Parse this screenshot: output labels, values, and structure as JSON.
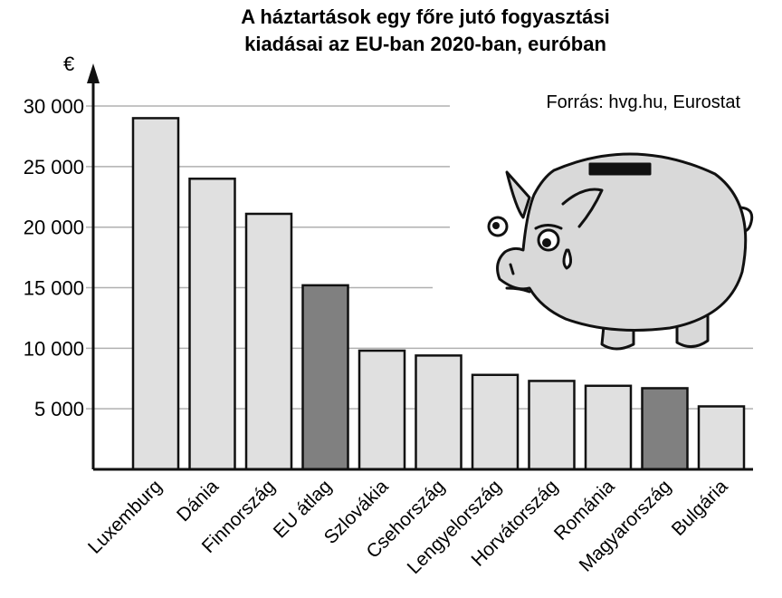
{
  "chart_data": {
    "type": "bar",
    "title": "A háztartások egy főre jutó fogyasztási",
    "subtitle": "kiadásai az EU-ban 2020-ban, euróban",
    "ylabel": "€",
    "source": "Forrás: hvg.hu, Eurostat",
    "ylim": [
      0,
      32000
    ],
    "yticks": [
      5000,
      10000,
      15000,
      20000,
      25000,
      30000
    ],
    "ytick_labels": [
      "5 000",
      "10 000",
      "15 000",
      "20 000",
      "25 000",
      "30 000"
    ],
    "grid": true,
    "categories": [
      "Luxemburg",
      "Dánia",
      "Finnország",
      "EU átlag",
      "Szlovákia",
      "Csehország",
      "Lengyelország",
      "Horvátország",
      "Románia",
      "Magyarország",
      "Bulgária"
    ],
    "values": [
      29000,
      24000,
      21100,
      15200,
      9800,
      9400,
      7800,
      7300,
      6900,
      6700,
      5200
    ],
    "highlighted": [
      "EU átlag",
      "Magyarország"
    ],
    "colors": {
      "bar": "#e0e0e0",
      "highlight": "#808080",
      "grid": "#b0b0b0",
      "outline": "#111111"
    },
    "illustration": "crying-piggy-bank"
  }
}
